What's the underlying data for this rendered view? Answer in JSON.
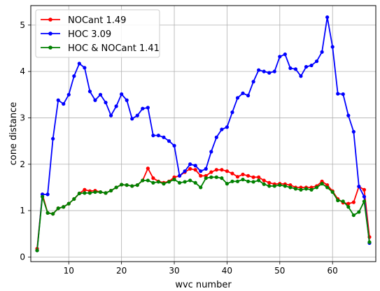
{
  "chart_data": {
    "type": "line",
    "xlabel": "wvc number",
    "ylabel": "cone distance",
    "xlim": [
      2.8,
      68.2
    ],
    "ylim": [
      -0.1,
      5.42
    ],
    "xticks": [
      10,
      20,
      30,
      40,
      50,
      60,
      70
    ],
    "yticks": [
      0,
      1,
      2,
      3,
      4,
      5
    ],
    "grid": true,
    "legend_position": "top-left",
    "x": [
      4,
      5,
      6,
      7,
      8,
      9,
      10,
      11,
      12,
      13,
      14,
      15,
      16,
      17,
      18,
      19,
      20,
      21,
      22,
      23,
      24,
      25,
      26,
      27,
      28,
      29,
      30,
      31,
      32,
      33,
      34,
      35,
      36,
      37,
      38,
      39,
      40,
      41,
      42,
      43,
      44,
      45,
      46,
      47,
      48,
      49,
      50,
      51,
      52,
      53,
      54,
      55,
      56,
      57,
      58,
      59,
      60,
      61,
      62,
      63,
      64,
      65,
      66,
      67
    ],
    "series": [
      {
        "name": "NOCant 1.49",
        "color": "#ff0000",
        "values": [
          0.18,
          1.35,
          0.95,
          0.93,
          1.05,
          1.08,
          1.15,
          1.25,
          1.37,
          1.45,
          1.42,
          1.43,
          1.4,
          1.38,
          1.43,
          1.5,
          1.56,
          1.55,
          1.53,
          1.55,
          1.65,
          1.91,
          1.7,
          1.63,
          1.6,
          1.63,
          1.72,
          1.75,
          1.83,
          1.9,
          1.88,
          1.75,
          1.75,
          1.83,
          1.88,
          1.88,
          1.85,
          1.8,
          1.73,
          1.78,
          1.75,
          1.72,
          1.72,
          1.65,
          1.6,
          1.57,
          1.58,
          1.57,
          1.55,
          1.5,
          1.5,
          1.5,
          1.5,
          1.53,
          1.63,
          1.55,
          1.42,
          1.25,
          1.17,
          1.15,
          1.18,
          1.52,
          1.45,
          0.43
        ]
      },
      {
        "name": "HOC 3.09",
        "color": "#0000ff",
        "values": [
          0.14,
          1.35,
          1.35,
          2.55,
          3.38,
          3.3,
          3.5,
          3.9,
          4.17,
          4.08,
          3.57,
          3.38,
          3.5,
          3.33,
          3.05,
          3.25,
          3.51,
          3.38,
          2.98,
          3.05,
          3.2,
          3.22,
          2.62,
          2.62,
          2.58,
          2.5,
          2.4,
          1.75,
          1.85,
          2.0,
          1.97,
          1.85,
          1.9,
          2.27,
          2.58,
          2.75,
          2.8,
          3.12,
          3.43,
          3.53,
          3.48,
          3.78,
          4.03,
          4.0,
          3.97,
          4.0,
          4.32,
          4.37,
          4.07,
          4.05,
          3.9,
          4.1,
          4.13,
          4.22,
          4.42,
          5.17,
          4.53,
          3.52,
          3.51,
          3.05,
          2.7,
          1.52,
          1.3,
          0.3
        ]
      },
      {
        "name": "HOC & NOCant 1.41",
        "color": "#008000",
        "values": [
          0.14,
          1.3,
          0.95,
          0.93,
          1.05,
          1.08,
          1.15,
          1.25,
          1.37,
          1.38,
          1.38,
          1.4,
          1.4,
          1.38,
          1.43,
          1.5,
          1.56,
          1.55,
          1.53,
          1.55,
          1.65,
          1.65,
          1.6,
          1.62,
          1.58,
          1.62,
          1.67,
          1.6,
          1.62,
          1.65,
          1.6,
          1.5,
          1.7,
          1.72,
          1.72,
          1.7,
          1.58,
          1.63,
          1.63,
          1.67,
          1.63,
          1.62,
          1.65,
          1.57,
          1.53,
          1.53,
          1.55,
          1.53,
          1.5,
          1.47,
          1.45,
          1.47,
          1.45,
          1.5,
          1.58,
          1.5,
          1.4,
          1.22,
          1.2,
          1.08,
          0.9,
          0.97,
          1.2,
          0.32
        ]
      }
    ]
  }
}
